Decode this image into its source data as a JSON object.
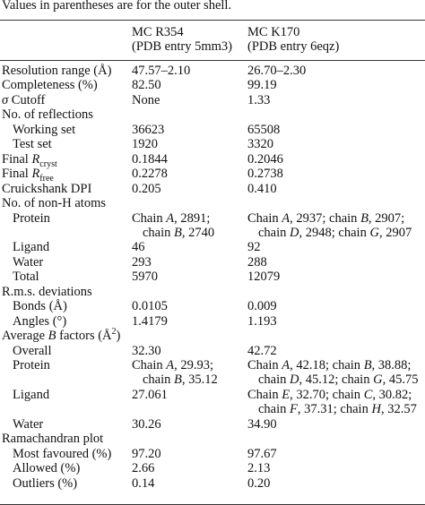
{
  "caption": "Values in parentheses are for the outer shell.",
  "header": [
    [
      "MC R354",
      "(PDB entry 5mm3)"
    ],
    [
      "MC K170",
      "(PDB entry 6eqz)"
    ]
  ],
  "rows": [
    {
      "label": "Resolution range (Å)",
      "values": [
        [
          "47.57–2.10"
        ],
        [
          "26.70–2.30"
        ]
      ]
    },
    {
      "label": "Completeness (%)",
      "values": [
        [
          "82.50"
        ],
        [
          "99.19"
        ]
      ]
    },
    {
      "label": [
        {
          "i": "σ"
        },
        " Cutoff"
      ],
      "values": [
        [
          "None"
        ],
        [
          "1.33"
        ]
      ]
    },
    {
      "label": "No. of reflections"
    },
    {
      "label": "Working set",
      "indent": true,
      "values": [
        [
          "36623"
        ],
        [
          "65508"
        ]
      ]
    },
    {
      "label": "Test set",
      "indent": true,
      "values": [
        [
          "1920"
        ],
        [
          "3320"
        ]
      ]
    },
    {
      "label": [
        "Final ",
        {
          "i": "R"
        },
        {
          "sub": "cryst"
        }
      ],
      "values": [
        [
          "0.1844"
        ],
        [
          "0.2046"
        ]
      ]
    },
    {
      "label": [
        "Final ",
        {
          "i": "R"
        },
        {
          "sub": "free"
        }
      ],
      "values": [
        [
          "0.2278"
        ],
        [
          "0.2738"
        ]
      ]
    },
    {
      "label": "Cruickshank DPI",
      "values": [
        [
          "0.205"
        ],
        [
          "0.410"
        ]
      ]
    },
    {
      "label": "No. of non-H atoms"
    },
    {
      "label": "Protein",
      "indent": true,
      "values": [
        [
          [
            "Chain ",
            {
              "i": "A"
            },
            ", 2891;"
          ],
          [
            "chain ",
            {
              "i": "B"
            },
            ", 2740"
          ]
        ],
        [
          [
            "Chain ",
            {
              "i": "A"
            },
            ", 2937; chain ",
            {
              "i": "B"
            },
            ", 2907;"
          ],
          [
            "chain ",
            {
              "i": "D"
            },
            ", 2948; chain ",
            {
              "i": "G"
            },
            ", 2907"
          ]
        ]
      ]
    },
    {
      "label": "Ligand",
      "indent": true,
      "values": [
        [
          "46"
        ],
        [
          "92"
        ]
      ]
    },
    {
      "label": "Water",
      "indent": true,
      "values": [
        [
          "293"
        ],
        [
          "288"
        ]
      ]
    },
    {
      "label": "Total",
      "indent": true,
      "values": [
        [
          "5970"
        ],
        [
          "12079"
        ]
      ]
    },
    {
      "label": "R.m.s. deviations"
    },
    {
      "label": "Bonds (Å)",
      "indent": true,
      "values": [
        [
          "0.0105"
        ],
        [
          "0.009"
        ]
      ]
    },
    {
      "label": "Angles (°)",
      "indent": true,
      "values": [
        [
          "1.4179"
        ],
        [
          "1.193"
        ]
      ]
    },
    {
      "label": [
        "Average ",
        {
          "i": "B"
        },
        " factors (Å",
        {
          "sup": "2"
        },
        ")"
      ]
    },
    {
      "label": "Overall",
      "indent": true,
      "values": [
        [
          "32.30"
        ],
        [
          "42.72"
        ]
      ]
    },
    {
      "label": "Protein",
      "indent": true,
      "values": [
        [
          [
            "Chain ",
            {
              "i": "A"
            },
            ", 29.93;"
          ],
          [
            "chain ",
            {
              "i": "B"
            },
            ", 35.12"
          ]
        ],
        [
          [
            "Chain ",
            {
              "i": "A"
            },
            ", 42.18; chain ",
            {
              "i": "B"
            },
            ", 38.88;"
          ],
          [
            "chain ",
            {
              "i": "D"
            },
            ", 45.12; chain ",
            {
              "i": "G"
            },
            ", 45.75"
          ]
        ]
      ]
    },
    {
      "label": "Ligand",
      "indent": true,
      "values": [
        [
          "27.061"
        ],
        [
          [
            "Chain ",
            {
              "i": "E"
            },
            ", 32.70; chain ",
            {
              "i": "C"
            },
            ", 30.82;"
          ],
          [
            "chain ",
            {
              "i": "F"
            },
            ", 37.31; chain ",
            {
              "i": "H"
            },
            ", 32.57"
          ]
        ]
      ]
    },
    {
      "label": "Water",
      "indent": true,
      "values": [
        [
          "30.26"
        ],
        [
          "34.90"
        ]
      ]
    },
    {
      "label": "Ramachandran plot"
    },
    {
      "label": "Most favoured (%)",
      "indent": true,
      "values": [
        [
          "97.20"
        ],
        [
          "97.67"
        ]
      ]
    },
    {
      "label": "Allowed (%)",
      "indent": true,
      "values": [
        [
          "2.66"
        ],
        [
          "2.13"
        ]
      ]
    },
    {
      "label": "Outliers (%)",
      "indent": true,
      "values": [
        [
          "0.14"
        ],
        [
          "0.20"
        ]
      ]
    }
  ]
}
